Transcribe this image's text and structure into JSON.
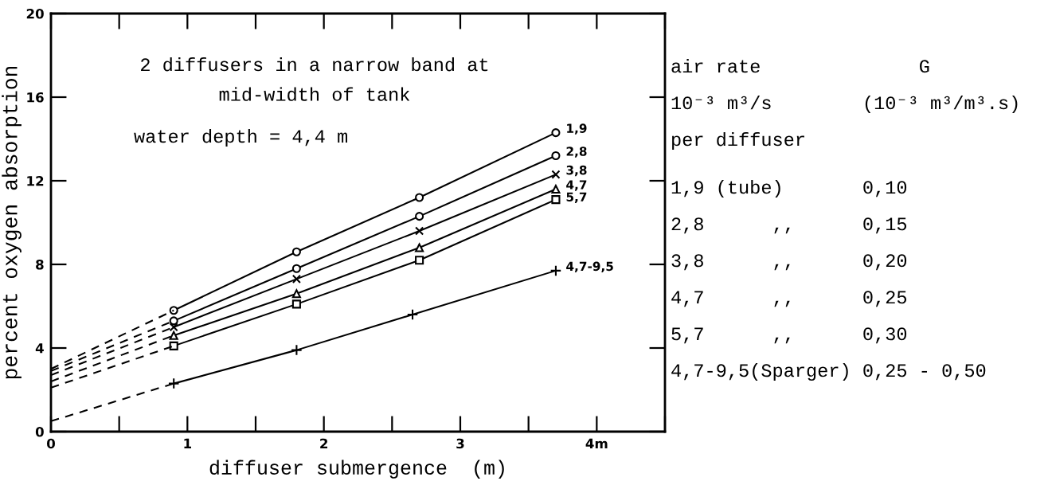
{
  "chart_data": {
    "type": "line",
    "xlabel": "diffuser submergence  (m)",
    "ylabel": "percent oxygen absorption",
    "xlim": [
      0,
      4.5
    ],
    "ylim": [
      0,
      20
    ],
    "xticks": [
      0,
      1,
      2,
      3,
      {
        "value": 4,
        "label": "4m"
      }
    ],
    "yticks": [
      0,
      4,
      8,
      12,
      16,
      20
    ],
    "grid": false,
    "legend": false,
    "annotations": [
      "2 diffusers in a narrow band at\nmid-width of tank",
      "water depth = 4,4 m",
      "air rate              G",
      "10⁻³ m³/s        (10⁻³ m³/m³.s)",
      "per diffuser",
      "1,9 (tube)       0,10",
      "2,8      ,,      0,15",
      "3,8      ,,      0,20",
      "4,7      ,,      0,25",
      "5,7      ,,      0,30",
      "4,7-9,5(Sparger) 0,25 - 0,50"
    ],
    "series": [
      {
        "name": "1,9",
        "color": "#000000",
        "x": [
          0.9,
          1.8,
          2.7,
          3.7
        ],
        "values": [
          5.8,
          8.6,
          11.2,
          14.3
        ],
        "marker": "circle",
        "line_style": "solid"
      },
      {
        "name": "2,8",
        "color": "#000000",
        "x": [
          0.9,
          1.8,
          2.7,
          3.7
        ],
        "values": [
          5.3,
          7.8,
          10.3,
          13.2
        ],
        "marker": "circle",
        "line_style": "solid"
      },
      {
        "name": "3,8",
        "color": "#000000",
        "x": [
          0.9,
          1.8,
          2.7,
          3.7
        ],
        "values": [
          5.0,
          7.3,
          9.6,
          12.3
        ],
        "marker": "cross",
        "line_style": "solid"
      },
      {
        "name": "4,7",
        "color": "#000000",
        "x": [
          0.9,
          1.8,
          2.7,
          3.7
        ],
        "values": [
          4.6,
          6.6,
          8.8,
          11.6
        ],
        "marker": "triangle",
        "line_style": "solid"
      },
      {
        "name": "5,7",
        "color": "#000000",
        "x": [
          0.9,
          1.8,
          2.7,
          3.7
        ],
        "values": [
          4.1,
          6.1,
          8.2,
          11.1
        ],
        "marker": "square",
        "line_style": "solid"
      },
      {
        "name": "4,7-9,5",
        "color": "#000000",
        "x": [
          0.9,
          1.8,
          2.65,
          3.7
        ],
        "values": [
          2.3,
          3.9,
          5.6,
          7.7
        ],
        "marker": "plus",
        "line_style": "solid"
      },
      {
        "color": "#000000",
        "x": [
          0,
          0.9
        ],
        "values": [
          3.0,
          5.8
        ],
        "marker": "none",
        "line_style": "dashed"
      },
      {
        "color": "#000000",
        "x": [
          0,
          0.9
        ],
        "values": [
          2.9,
          5.3
        ],
        "marker": "none",
        "line_style": "dashed"
      },
      {
        "color": "#000000",
        "x": [
          0,
          0.9
        ],
        "values": [
          2.7,
          5.0
        ],
        "marker": "none",
        "line_style": "dashed"
      },
      {
        "color": "#000000",
        "x": [
          0,
          0.9
        ],
        "values": [
          2.4,
          4.6
        ],
        "marker": "none",
        "line_style": "dashed"
      },
      {
        "color": "#000000",
        "x": [
          0,
          0.9
        ],
        "values": [
          2.1,
          4.1
        ],
        "marker": "none",
        "line_style": "dashed"
      },
      {
        "color": "#000000",
        "x": [
          0,
          0.9
        ],
        "values": [
          0.5,
          2.3
        ],
        "marker": "none",
        "line_style": "dashed"
      }
    ]
  }
}
